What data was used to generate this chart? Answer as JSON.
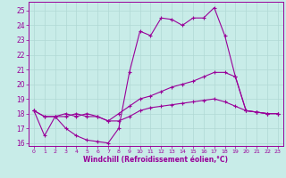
{
  "xlabel": "Windchill (Refroidissement éolien,°C)",
  "bg_color": "#c8ece8",
  "grid_color": "#b0d8d4",
  "line_color": "#990099",
  "xlim": [
    -0.5,
    23.5
  ],
  "ylim": [
    15.8,
    25.6
  ],
  "yticks": [
    16,
    17,
    18,
    19,
    20,
    21,
    22,
    23,
    24,
    25
  ],
  "xticks": [
    0,
    1,
    2,
    3,
    4,
    5,
    6,
    7,
    8,
    9,
    10,
    11,
    12,
    13,
    14,
    15,
    16,
    17,
    18,
    19,
    20,
    21,
    22,
    23
  ],
  "line1_x": [
    0,
    1,
    2,
    3,
    4,
    5,
    6,
    7,
    8,
    9,
    10,
    11,
    12,
    13,
    14,
    15,
    16,
    17,
    18,
    19,
    20,
    21,
    22,
    23
  ],
  "line1_y": [
    18.2,
    16.5,
    17.8,
    17.0,
    16.5,
    16.2,
    16.1,
    16.0,
    17.0,
    20.8,
    23.6,
    23.3,
    24.5,
    24.4,
    24.0,
    24.5,
    24.5,
    25.2,
    23.3,
    20.5,
    18.2,
    18.1,
    18.0,
    18.0
  ],
  "line2_x": [
    0,
    1,
    2,
    3,
    4,
    5,
    6,
    7,
    8,
    9,
    10,
    11,
    12,
    13,
    14,
    15,
    16,
    17,
    18,
    19,
    20,
    21,
    22,
    23
  ],
  "line2_y": [
    18.2,
    17.8,
    17.8,
    18.0,
    17.8,
    18.0,
    17.8,
    17.5,
    18.0,
    18.5,
    19.0,
    19.2,
    19.5,
    19.8,
    20.0,
    20.2,
    20.5,
    20.8,
    20.8,
    20.5,
    18.2,
    18.1,
    18.0,
    18.0
  ],
  "line3_x": [
    0,
    1,
    2,
    3,
    4,
    5,
    6,
    7,
    8,
    9,
    10,
    11,
    12,
    13,
    14,
    15,
    16,
    17,
    18,
    19,
    20,
    21,
    22,
    23
  ],
  "line3_y": [
    18.2,
    17.8,
    17.8,
    17.8,
    18.0,
    17.8,
    17.8,
    17.5,
    17.5,
    17.8,
    18.2,
    18.4,
    18.5,
    18.6,
    18.7,
    18.8,
    18.9,
    19.0,
    18.8,
    18.5,
    18.2,
    18.1,
    18.0,
    18.0
  ]
}
